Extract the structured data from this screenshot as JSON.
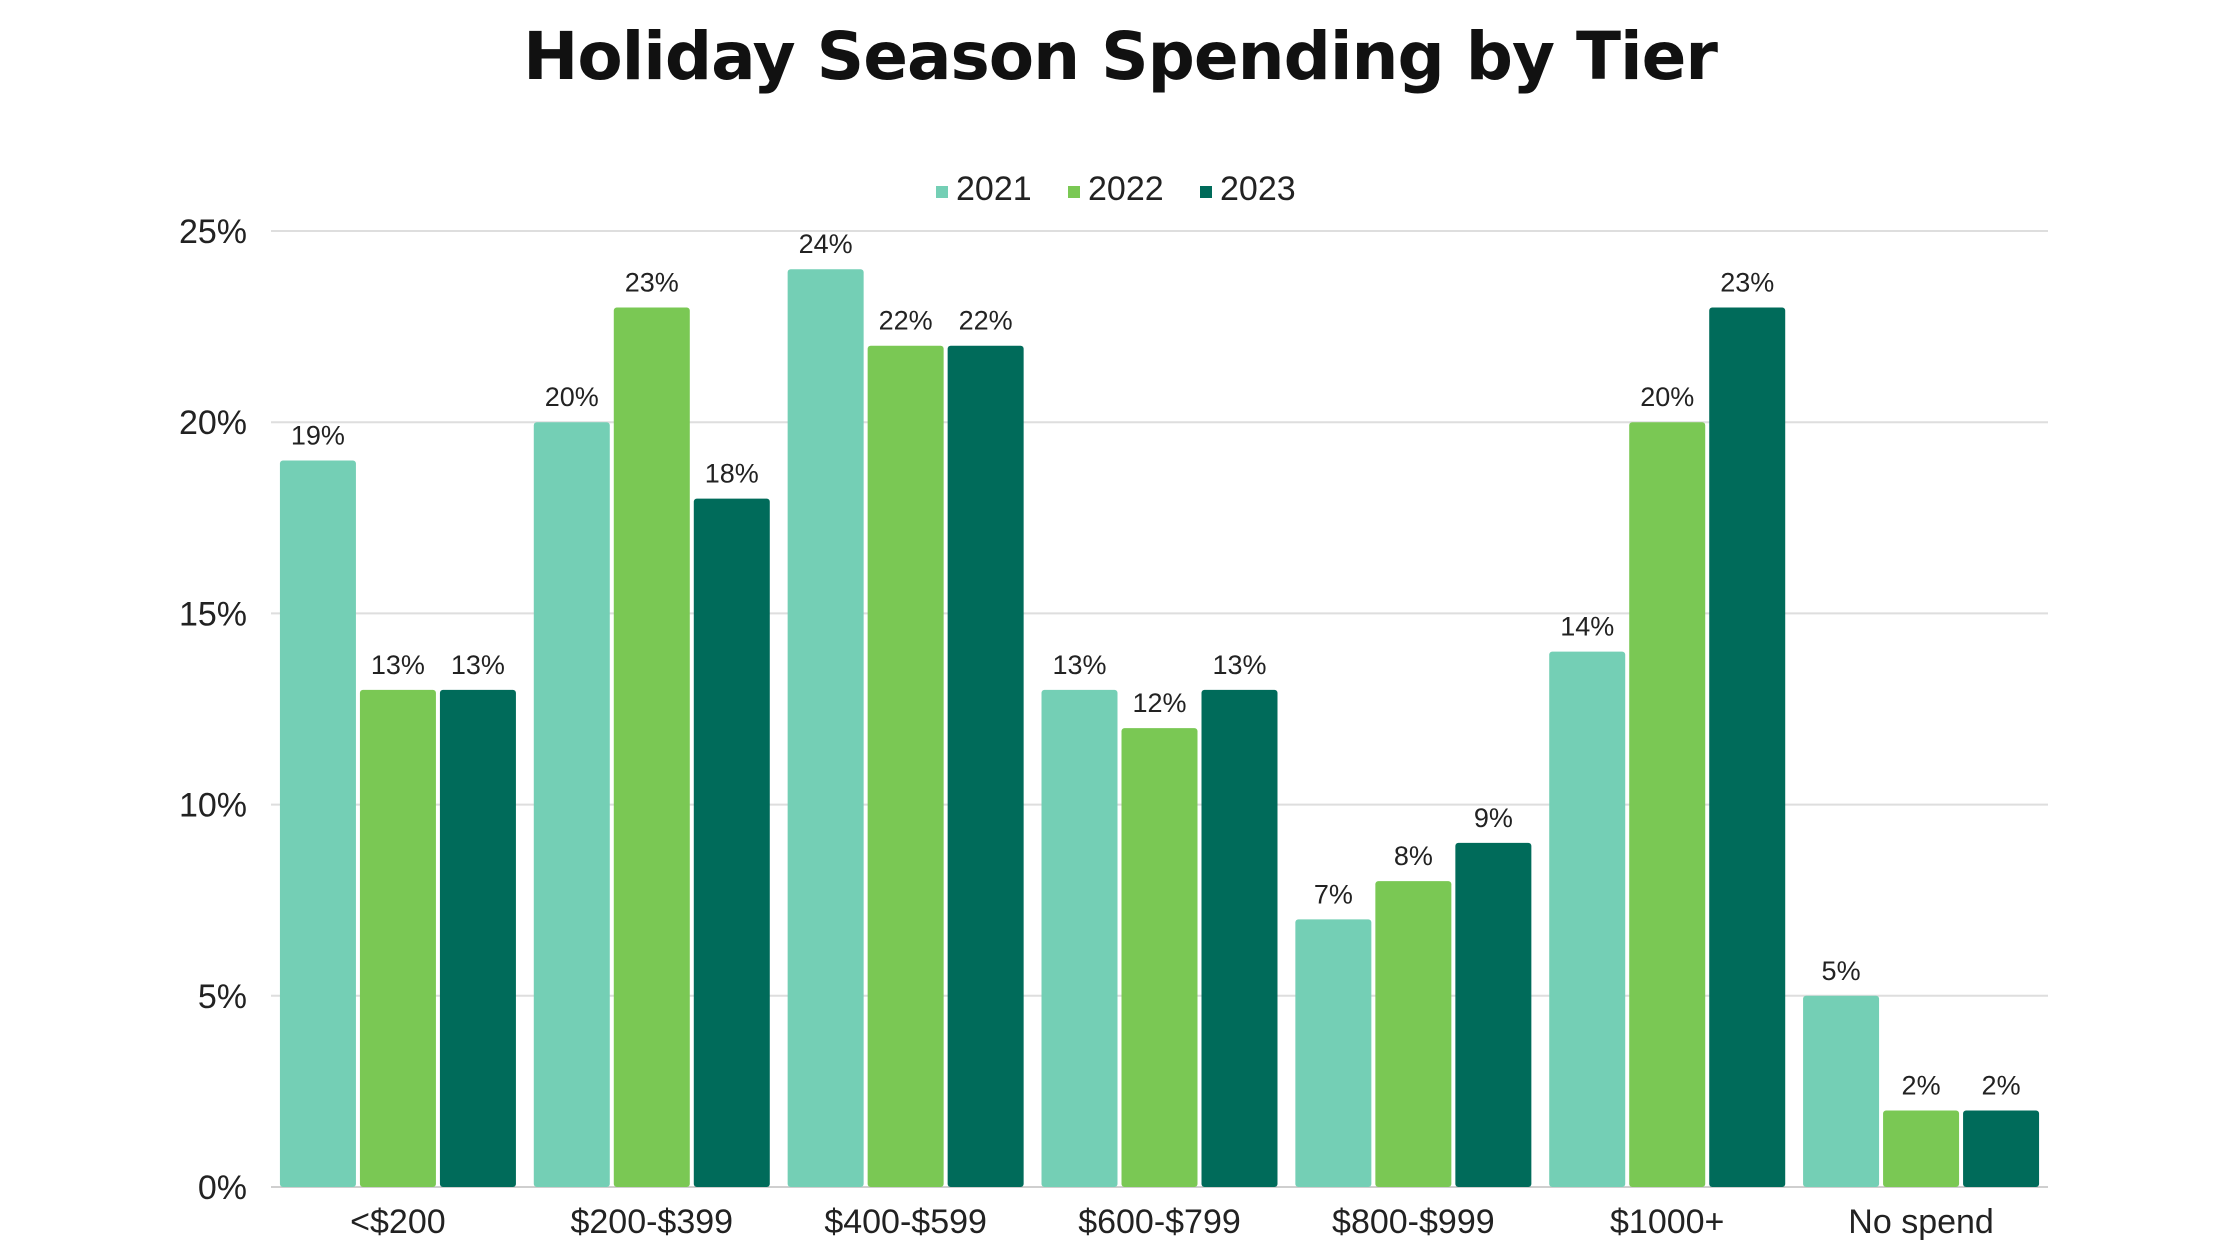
{
  "chart_data": {
    "type": "bar",
    "title": "Holiday Season Spending by Tier",
    "xlabel": "",
    "ylabel": "",
    "ylim": [
      0,
      25
    ],
    "ytick_step": 5,
    "y_tick_labels": [
      "0%",
      "5%",
      "10%",
      "15%",
      "20%",
      "25%"
    ],
    "value_suffix": "%",
    "grid": true,
    "legend_position": "top-center",
    "categories": [
      "<$200",
      "$200-$399",
      "$400-$599",
      "$600-$799",
      "$800-$999",
      "$1000+",
      "No spend"
    ],
    "series": [
      {
        "name": "2021",
        "color": "#74cfb5",
        "values": [
          19,
          20,
          24,
          13,
          7,
          14,
          5
        ]
      },
      {
        "name": "2022",
        "color": "#7ac854",
        "values": [
          13,
          23,
          22,
          12,
          8,
          20,
          2
        ]
      },
      {
        "name": "2023",
        "color": "#006b5a",
        "values": [
          13,
          18,
          22,
          13,
          9,
          23,
          2
        ]
      }
    ]
  }
}
